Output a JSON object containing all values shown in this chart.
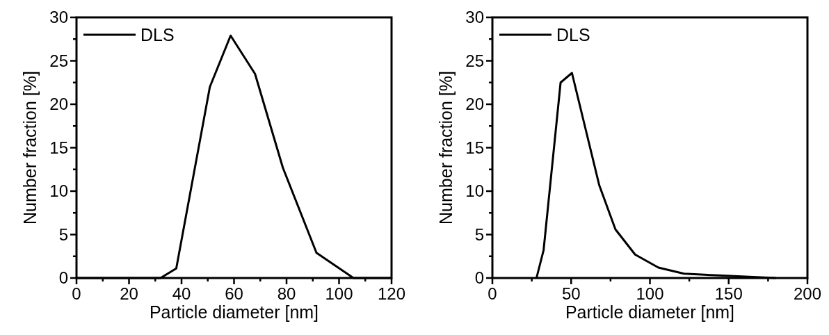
{
  "chart_data": [
    {
      "type": "line",
      "xlabel": "Particle diameter [nm]",
      "ylabel": "Number fraction [%]",
      "legend": "top left",
      "line_style": "solid",
      "marker": "none",
      "xlim": [
        0,
        120
      ],
      "ylim": [
        0,
        30
      ],
      "xticks": [
        0,
        {
          "value": 10,
          "label": null
        },
        20,
        {
          "value": 30,
          "label": null
        },
        40,
        {
          "value": 50,
          "label": null
        },
        60,
        {
          "value": 70,
          "label": null
        },
        80,
        {
          "value": 90,
          "label": null
        },
        100,
        {
          "value": 110,
          "label": null
        },
        120
      ],
      "yticks": [
        0,
        {
          "value": 2.5,
          "label": null
        },
        5,
        {
          "value": 7.5,
          "label": null
        },
        10,
        {
          "value": 12.5,
          "label": null
        },
        15,
        {
          "value": 17.5,
          "label": null
        },
        20,
        {
          "value": 22.5,
          "label": null
        },
        25,
        {
          "value": 27.5,
          "label": null
        },
        30
      ],
      "series": [
        {
          "name": "DLS",
          "color": "#000000",
          "x": [
            0,
            32,
            38,
            50.8,
            58.7,
            68,
            78.6,
            91.4,
            105.5,
            120
          ],
          "values": [
            0,
            0,
            1.1,
            22,
            27.9,
            23.5,
            12.7,
            2.9,
            0,
            0
          ]
        }
      ]
    },
    {
      "type": "line",
      "xlabel": "Particle diameter [nm]",
      "ylabel": "Number fraction [%]",
      "legend": "top left",
      "line_style": "solid",
      "marker": "none",
      "xlim": [
        0,
        200
      ],
      "ylim": [
        0,
        30
      ],
      "xticks": [
        0,
        {
          "value": 25,
          "label": null
        },
        50,
        {
          "value": 75,
          "label": null
        },
        100,
        {
          "value": 125,
          "label": null
        },
        150,
        {
          "value": 175,
          "label": null
        },
        200
      ],
      "yticks": [
        0,
        {
          "value": 2.5,
          "label": null
        },
        5,
        {
          "value": 7.5,
          "label": null
        },
        10,
        {
          "value": 12.5,
          "label": null
        },
        15,
        {
          "value": 17.5,
          "label": null
        },
        20,
        {
          "value": 22.5,
          "label": null
        },
        25,
        {
          "value": 27.5,
          "label": null
        },
        30
      ],
      "series": [
        {
          "name": "DLS",
          "color": "#000000",
          "x": [
            28,
            32.5,
            43.3,
            50.5,
            67.8,
            78.1,
            90.6,
            105.4,
            121.6,
            143.5,
            180
          ],
          "values": [
            0,
            3.2,
            22.5,
            23.6,
            10.7,
            5.6,
            2.7,
            1.2,
            0.5,
            0.3,
            0
          ]
        }
      ]
    }
  ]
}
